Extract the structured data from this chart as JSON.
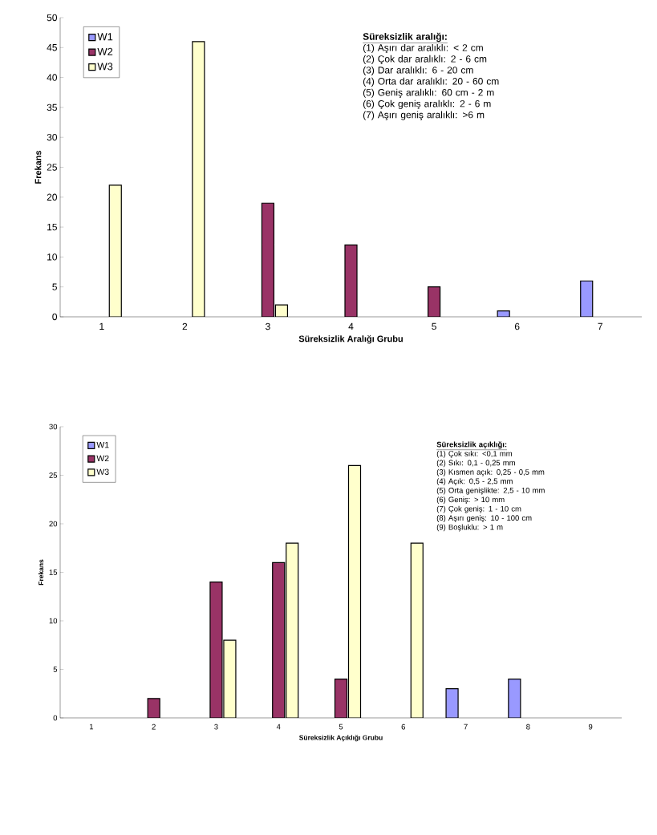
{
  "chart_data": [
    {
      "type": "bar",
      "xlabel": "Süreksizlik Aralığı Grubu",
      "ylabel": "Frekans",
      "categories": [
        "1",
        "2",
        "3",
        "4",
        "5",
        "6",
        "7"
      ],
      "series": [
        {
          "name": "W1",
          "color": "#9999ff",
          "values": [
            null,
            null,
            null,
            null,
            null,
            1,
            6
          ]
        },
        {
          "name": "W2",
          "color": "#993366",
          "values": [
            null,
            null,
            19,
            12,
            5,
            null,
            null
          ]
        },
        {
          "name": "W3",
          "color": "#ffffcc",
          "values": [
            22,
            46,
            2,
            null,
            null,
            null,
            null
          ]
        }
      ],
      "ylim": [
        0,
        50
      ],
      "yticks": [
        0,
        5,
        10,
        15,
        20,
        25,
        30,
        35,
        40,
        45,
        50
      ],
      "legend": "top left",
      "annotations": [
        "Süreksizlik aralığı:",
        "(1) Aşırı dar aralıklı: < 2 cm",
        "(2) Çok dar aralıklı: 2 - 6 cm",
        "(3) Dar aralıklı: 6 - 20 cm",
        "(4) Orta dar aralıklı: 20 - 60 cm",
        "(5) Geniş aralıklı: 60 cm - 2 m",
        "(6) Çok geniş aralıklı: 2 - 6 m",
        "(7) Aşırı geniş aralıklı: >6 m"
      ]
    },
    {
      "type": "bar",
      "xlabel": "Süreksizlik Açıklığı Grubu",
      "ylabel": "Frekans",
      "categories": [
        "1",
        "2",
        "3",
        "4",
        "5",
        "6",
        "7",
        "8",
        "9"
      ],
      "series": [
        {
          "name": "W1",
          "color": "#9999ff",
          "values": [
            null,
            null,
            null,
            null,
            null,
            null,
            3,
            4,
            null
          ]
        },
        {
          "name": "W2",
          "color": "#993366",
          "values": [
            null,
            2,
            14,
            16,
            4,
            null,
            null,
            null,
            null
          ]
        },
        {
          "name": "W3",
          "color": "#ffffcc",
          "values": [
            null,
            null,
            8,
            18,
            26,
            18,
            null,
            null,
            null
          ]
        }
      ],
      "ylim": [
        0,
        30
      ],
      "yticks": [
        0,
        5,
        10,
        15,
        20,
        25,
        30
      ],
      "legend": "top left",
      "annotations": [
        "Süreksizlik açıklığı:",
        "(1) Çok sıkı: <0,1 mm",
        "(2) Sıkı: 0,1 - 0,25 mm",
        "(3) Kısmen açık: 0,25 - 0,5 mm",
        "(4) Açık: 0,5 - 2,5 mm",
        "(5) Orta genişlikte: 2,5 - 10 mm",
        "(6) Geniş: > 10 mm",
        "(7) Çok geniş: 1 - 10 cm",
        "(8) Aşırı geniş: 10 - 100 cm",
        "(9) Boşluklu: > 1 m"
      ]
    }
  ]
}
